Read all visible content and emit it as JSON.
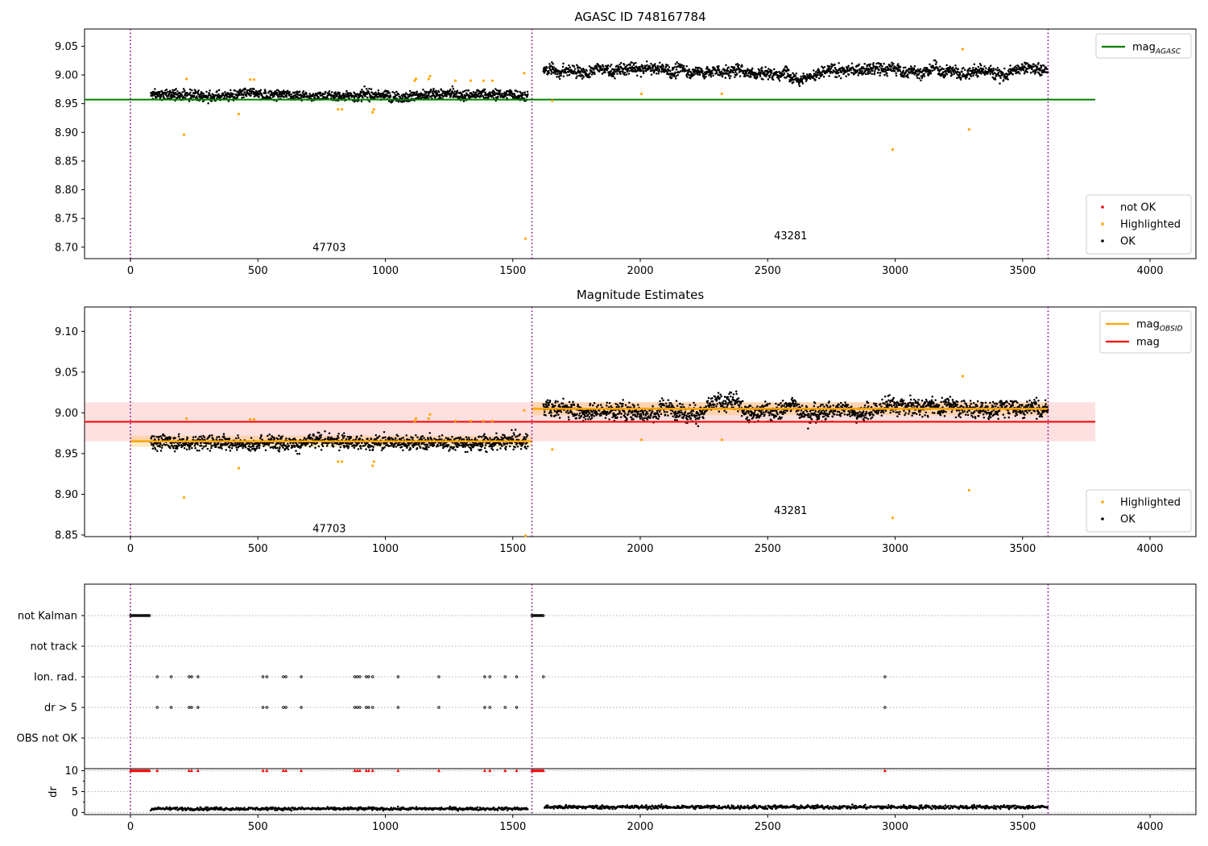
{
  "figure": {
    "panels": [
      {
        "id": "agasc",
        "title": "AGASC ID 748167784"
      },
      {
        "id": "estimates",
        "title": "Magnitude Estimates"
      },
      {
        "id": "flags",
        "title": ""
      }
    ]
  },
  "chart_data": [
    {
      "type": "scatter",
      "title": "AGASC ID 748167784",
      "xlabel": "",
      "ylabel": "",
      "xlim": [
        -180,
        4180
      ],
      "ylim": [
        8.68,
        9.08
      ],
      "xticks": [
        "0",
        "500",
        "1000",
        "1500",
        "2000",
        "2500",
        "3000",
        "3500",
        "4000"
      ],
      "yticks": [
        "8.70",
        "8.75",
        "8.80",
        "8.85",
        "8.90",
        "8.95",
        "9.00",
        "9.05"
      ],
      "vlines": [
        0,
        1575,
        3600
      ],
      "hlines": [
        {
          "name": "mag_AGASC",
          "y": 8.957,
          "x": [
            -180,
            3785
          ],
          "color": "#008000"
        }
      ],
      "obsid_labels": [
        {
          "text": "47703",
          "x": 780,
          "y": 8.7
        },
        {
          "text": "43281",
          "x": 2590,
          "y": 8.72
        }
      ],
      "segments": [
        {
          "x": [
            80,
            1560
          ],
          "mean": 8.965,
          "noise": 0.009,
          "wander": 0.004
        },
        {
          "x": [
            1620,
            3600
          ],
          "mean": 9.007,
          "noise": 0.01,
          "wander": 0.012
        }
      ],
      "highlighted": [
        [
          210,
          8.896
        ],
        [
          220,
          8.993
        ],
        [
          425,
          8.932
        ],
        [
          470,
          8.992
        ],
        [
          485,
          8.992
        ],
        [
          815,
          8.94
        ],
        [
          830,
          8.94
        ],
        [
          950,
          8.935
        ],
        [
          955,
          8.94
        ],
        [
          1115,
          8.99
        ],
        [
          1120,
          8.993
        ],
        [
          1170,
          8.993
        ],
        [
          1175,
          8.998
        ],
        [
          1275,
          8.99
        ],
        [
          1335,
          8.99
        ],
        [
          1385,
          8.99
        ],
        [
          1420,
          8.99
        ],
        [
          1545,
          9.003
        ],
        [
          1550,
          8.715
        ],
        [
          1655,
          8.955
        ],
        [
          2005,
          8.967
        ],
        [
          2320,
          8.967
        ],
        [
          2990,
          8.87
        ],
        [
          3265,
          9.045
        ],
        [
          3290,
          8.905
        ]
      ],
      "legends": [
        {
          "position": "top-right",
          "items": [
            {
              "label": "mag_AGASC",
              "kind": "line",
              "color": "#008000"
            }
          ]
        },
        {
          "position": "lower-right",
          "items": [
            {
              "label": "not OK",
              "kind": "dot",
              "color": "#ff0000"
            },
            {
              "label": "Highlighted",
              "kind": "dot",
              "color": "#ffa500"
            },
            {
              "label": "OK",
              "kind": "dot",
              "color": "#000000"
            }
          ]
        }
      ]
    },
    {
      "type": "scatter",
      "title": "Magnitude Estimates",
      "xlabel": "",
      "ylabel": "",
      "xlim": [
        -180,
        4180
      ],
      "ylim": [
        8.848,
        9.13
      ],
      "xticks": [
        "0",
        "500",
        "1000",
        "1500",
        "2000",
        "2500",
        "3000",
        "3500",
        "4000"
      ],
      "yticks": [
        "8.85",
        "8.90",
        "8.95",
        "9.00",
        "9.05",
        "9.10"
      ],
      "vlines": [
        0,
        1575,
        3600
      ],
      "mag_band": {
        "y": 8.989,
        "low": 8.965,
        "high": 9.013,
        "x": [
          -180,
          3785
        ],
        "color": "#ff0000"
      },
      "obsid_mags": [
        {
          "x": [
            0,
            1575
          ],
          "y": 8.965,
          "low": 8.958,
          "high": 8.972
        },
        {
          "x": [
            1575,
            3600
          ],
          "y": 9.005,
          "low": 8.997,
          "high": 9.013
        }
      ],
      "obsid_labels": [
        {
          "text": "47703",
          "x": 780,
          "y": 8.858
        },
        {
          "text": "43281",
          "x": 2590,
          "y": 8.88
        }
      ],
      "highlighted": [
        [
          210,
          8.896
        ],
        [
          220,
          8.993
        ],
        [
          425,
          8.932
        ],
        [
          470,
          8.992
        ],
        [
          485,
          8.992
        ],
        [
          815,
          8.94
        ],
        [
          830,
          8.94
        ],
        [
          950,
          8.935
        ],
        [
          955,
          8.94
        ],
        [
          1115,
          8.99
        ],
        [
          1120,
          8.993
        ],
        [
          1170,
          8.993
        ],
        [
          1175,
          8.998
        ],
        [
          1275,
          8.99
        ],
        [
          1335,
          8.99
        ],
        [
          1385,
          8.99
        ],
        [
          1420,
          8.99
        ],
        [
          1545,
          9.003
        ],
        [
          1550,
          8.849
        ],
        [
          1655,
          8.955
        ],
        [
          2005,
          8.967
        ],
        [
          2320,
          8.967
        ],
        [
          2990,
          8.871
        ],
        [
          3265,
          9.045
        ],
        [
          3290,
          8.905
        ]
      ],
      "legends": [
        {
          "position": "top-right",
          "items": [
            {
              "label": "mag_OBSID",
              "kind": "line",
              "color": "#ffa500"
            },
            {
              "label": "mag",
              "kind": "line",
              "color": "#ff0000"
            }
          ]
        },
        {
          "position": "lower-right",
          "items": [
            {
              "label": "Highlighted",
              "kind": "dot",
              "color": "#ffa500"
            },
            {
              "label": "OK",
              "kind": "dot",
              "color": "#000000"
            }
          ]
        }
      ]
    },
    {
      "type": "scatter",
      "title": "",
      "xlabel": "",
      "ylabel": "dr",
      "xlim": [
        -180,
        4180
      ],
      "xticks": [
        "0",
        "500",
        "1000",
        "1500",
        "2000",
        "2500",
        "3000",
        "3500",
        "4000"
      ],
      "flag_rows": [
        "not Kalman",
        "not track",
        "Ion. rad.",
        "dr > 5",
        "OBS not OK"
      ],
      "flags": {
        "not Kalman": {
          "ranges": [
            [
              0,
              75
            ],
            [
              1575,
              1620
            ]
          ]
        },
        "not track": {
          "ranges": []
        },
        "Ion. rad.": {
          "points": [
            105,
            160,
            230,
            240,
            265,
            520,
            535,
            600,
            610,
            670,
            880,
            890,
            900,
            925,
            935,
            950,
            1050,
            1210,
            1390,
            1410,
            1470,
            1515,
            1620,
            2960
          ]
        },
        "dr > 5": {
          "points": [
            105,
            160,
            230,
            240,
            265,
            520,
            535,
            600,
            610,
            670,
            880,
            890,
            900,
            925,
            935,
            950,
            1050,
            1210,
            1390,
            1410,
            1470,
            1515,
            2960
          ]
        },
        "OBS not OK": {
          "points": []
        }
      },
      "dr_ylim": [
        -0.5,
        10.5
      ],
      "dr_yticks": [
        "0",
        "5",
        "10"
      ],
      "dr_red_points": [
        0,
        5,
        10,
        15,
        20,
        25,
        30,
        35,
        40,
        45,
        50,
        55,
        60,
        65,
        70,
        75,
        105,
        230,
        240,
        265,
        520,
        535,
        600,
        610,
        670,
        880,
        890,
        900,
        925,
        935,
        950,
        1050,
        1210,
        1390,
        1410,
        1470,
        1515,
        1575,
        1580,
        1585,
        1590,
        1595,
        1600,
        1605,
        1610,
        1615,
        1620,
        2960
      ],
      "dr_segments": [
        {
          "x": [
            80,
            1560
          ],
          "mean": 0.9,
          "noise": 0.35
        },
        {
          "x": [
            1625,
            3600
          ],
          "mean": 1.3,
          "noise": 0.45
        }
      ]
    }
  ]
}
